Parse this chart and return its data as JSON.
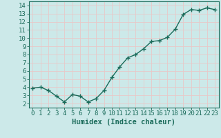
{
  "x": [
    0,
    1,
    2,
    3,
    4,
    5,
    6,
    7,
    8,
    9,
    10,
    11,
    12,
    13,
    14,
    15,
    16,
    17,
    18,
    19,
    20,
    21,
    22,
    23
  ],
  "y": [
    3.9,
    4.0,
    3.6,
    2.9,
    2.2,
    3.1,
    2.9,
    2.2,
    2.6,
    3.6,
    5.2,
    6.5,
    7.6,
    8.0,
    8.7,
    9.6,
    9.7,
    10.1,
    11.1,
    12.9,
    13.5,
    13.4,
    13.7,
    13.5
  ],
  "line_color": "#1a6b5a",
  "marker": "+",
  "marker_size": 4,
  "xlabel": "Humidex (Indice chaleur)",
  "xlim": [
    -0.5,
    23.5
  ],
  "ylim": [
    1.5,
    14.5
  ],
  "yticks": [
    2,
    3,
    4,
    5,
    6,
    7,
    8,
    9,
    10,
    11,
    12,
    13,
    14
  ],
  "xticks": [
    0,
    1,
    2,
    3,
    4,
    5,
    6,
    7,
    8,
    9,
    10,
    11,
    12,
    13,
    14,
    15,
    16,
    17,
    18,
    19,
    20,
    21,
    22,
    23
  ],
  "bg_color": "#cce9e9",
  "grid_color": "#e8c8c8",
  "tick_label_fontsize": 6.5,
  "xlabel_fontsize": 7.5,
  "line_width": 1.0
}
